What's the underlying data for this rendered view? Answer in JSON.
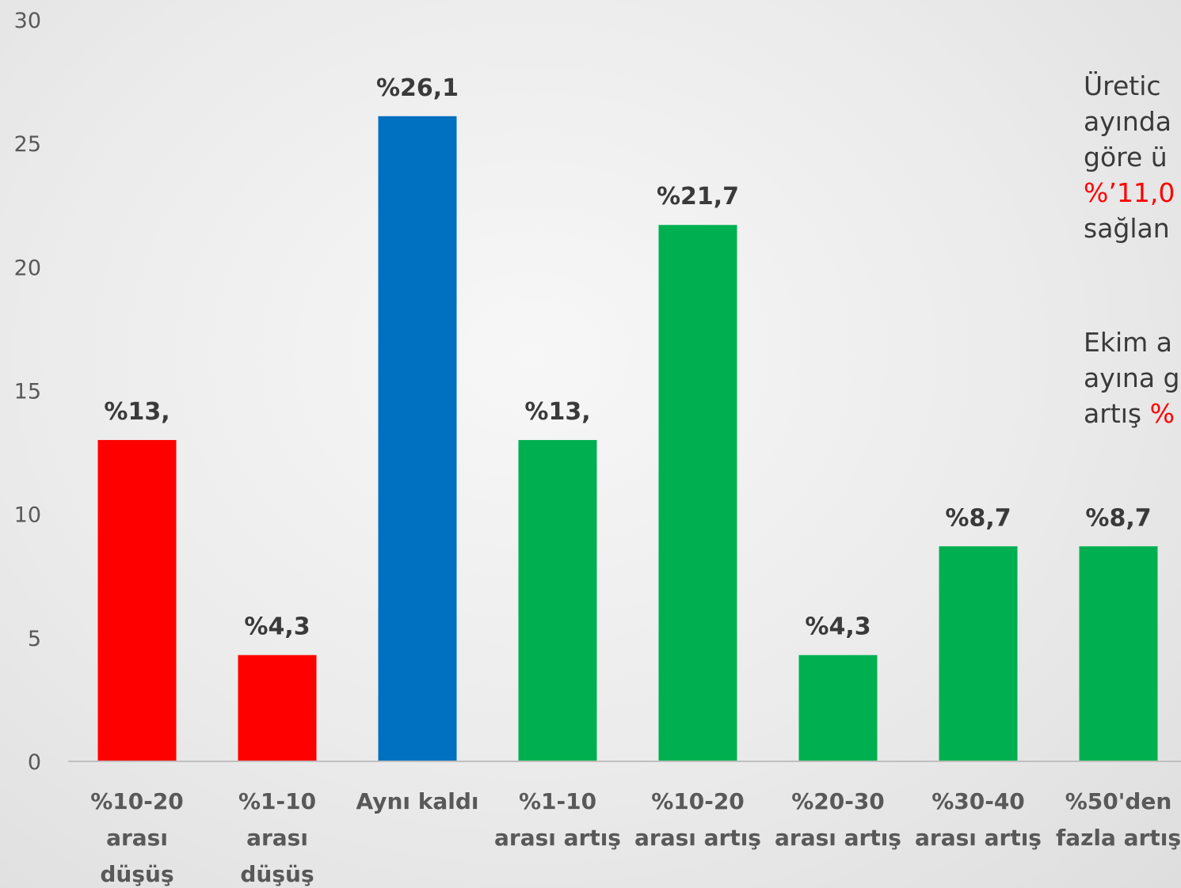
{
  "chart_data": {
    "type": "bar",
    "categories": [
      [
        "%10-20",
        "arası",
        "düşüş"
      ],
      [
        "%1-10",
        "arası",
        "düşüş"
      ],
      [
        "Aynı kaldı"
      ],
      [
        "%1-10",
        "arası artış"
      ],
      [
        "%10-20",
        "arası artış"
      ],
      [
        "%20-30",
        "arası artış"
      ],
      [
        "%30-40",
        "arası artış"
      ],
      [
        "%50'den",
        "fazla artış"
      ]
    ],
    "values": [
      13.0,
      4.3,
      26.1,
      13.0,
      21.7,
      4.3,
      8.7,
      8.7
    ],
    "data_labels": [
      "%13,",
      "%4,3",
      "%26,1",
      "%13,",
      "%21,7",
      "%4,3",
      "%8,7",
      "%8,7"
    ],
    "bar_colors": [
      "#ff0000",
      "#ff0000",
      "#0070c0",
      "#00b050",
      "#00b050",
      "#00b050",
      "#00b050",
      "#00b050"
    ],
    "ylim": [
      0,
      30
    ],
    "yticks": [
      "0",
      "5",
      "10",
      "15",
      "20",
      "25",
      "30"
    ],
    "ytick_values": [
      0,
      5,
      10,
      15,
      20,
      25,
      30
    ],
    "grid": false,
    "title": "",
    "xlabel": "",
    "ylabel": ""
  },
  "annotation": {
    "paragraph1": [
      [
        {
          "text": "Üretic",
          "red": false
        }
      ],
      [
        {
          "text": "ayında",
          "red": false
        }
      ],
      [
        {
          "text": "göre ü",
          "red": false
        }
      ],
      [
        {
          "text": "%’11,0",
          "red": true
        }
      ],
      [
        {
          "text": "sağlan",
          "red": false
        }
      ]
    ],
    "paragraph2": [
      [
        {
          "text": "Ekim a",
          "red": false
        }
      ],
      [
        {
          "text": "ayına g",
          "red": false
        }
      ],
      [
        {
          "text": "artış ",
          "red": false
        },
        {
          "text": "%",
          "red": true
        }
      ]
    ]
  }
}
